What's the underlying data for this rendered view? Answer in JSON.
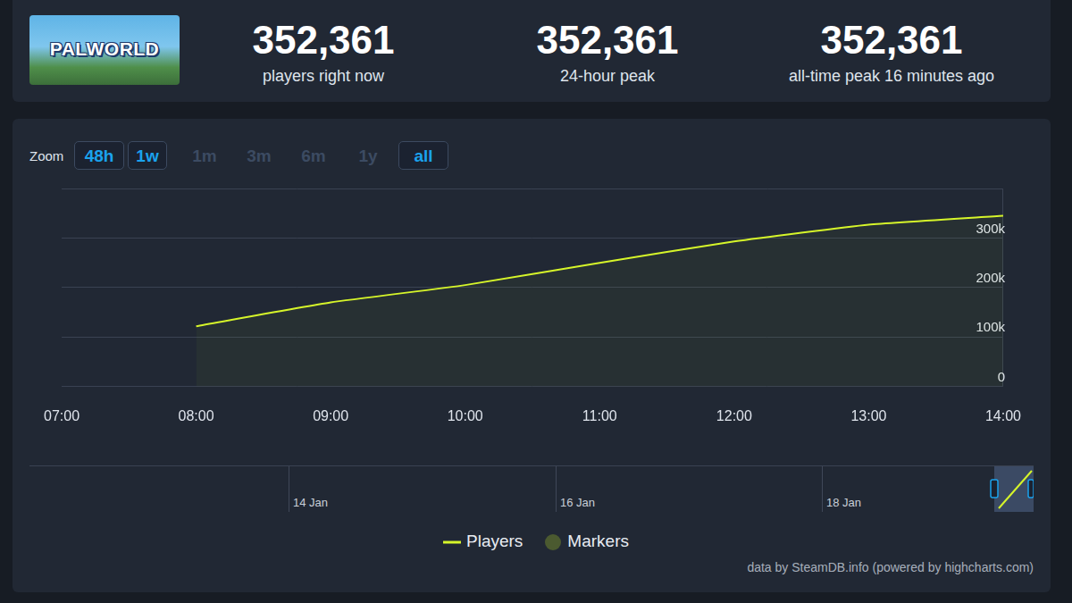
{
  "header": {
    "game_title": "PALWORLD",
    "stats": [
      {
        "value": "352,361",
        "label": "players right now"
      },
      {
        "value": "352,361",
        "label": "24-hour peak"
      },
      {
        "value": "352,361",
        "label": "all-time peak 16 minutes ago"
      }
    ]
  },
  "zoom": {
    "label": "Zoom",
    "buttons": [
      {
        "label": "48h",
        "active": true
      },
      {
        "label": "1w",
        "active": true
      },
      {
        "label": "1m",
        "active": false
      },
      {
        "label": "3m",
        "active": false
      },
      {
        "label": "6m",
        "active": false
      },
      {
        "label": "1y",
        "active": false
      },
      {
        "label": "all",
        "active": true
      }
    ]
  },
  "chart_data": {
    "type": "line",
    "categories": [
      "07:00",
      "08:00",
      "09:00",
      "10:00",
      "11:00",
      "12:00",
      "13:00",
      "14:00"
    ],
    "series": [
      {
        "name": "Players",
        "color": "#d6f52a",
        "line_style": "solid",
        "values": [
          null,
          122000,
          170000,
          205000,
          250000,
          293000,
          327000,
          345000
        ]
      },
      {
        "name": "Markers",
        "color": "#4b5a30",
        "marker": "circle",
        "values": [
          null,
          null,
          null,
          null,
          null,
          null,
          null,
          null
        ]
      }
    ],
    "ylim": [
      0,
      400000
    ],
    "yticks": [
      0,
      {
        "value": 100000,
        "label": "100k"
      },
      {
        "value": 200000,
        "label": "200k"
      },
      {
        "value": 300000,
        "label": "300k"
      }
    ],
    "grid": true,
    "legend": "bottom"
  },
  "navigator": {
    "dates": [
      "14 Jan",
      "16 Jan",
      "18 Jan"
    ]
  },
  "credit": "data by SteamDB.info (powered by highcharts.com)"
}
